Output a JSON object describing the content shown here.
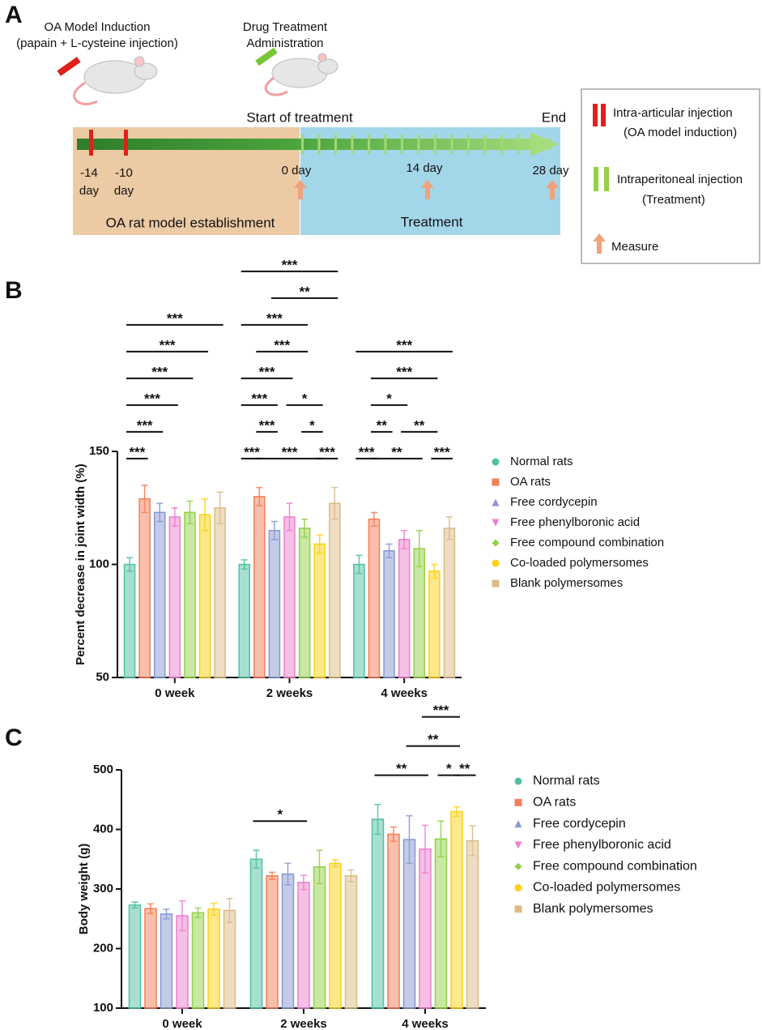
{
  "diagram": {
    "panel": "A",
    "induction": [
      "OA Model Induction",
      "(papain + L-cysteine injection)"
    ],
    "treatment_admin": [
      "Drug Treatment",
      "Administration"
    ],
    "start": "Start of treatment",
    "end": "End",
    "time_labels": [
      "-14",
      "day",
      "-10",
      "day",
      "0 day",
      "14 day",
      "28 day"
    ],
    "phases": [
      "OA rat model establishment",
      "Treatment"
    ],
    "legend": [
      "Intra-articular injection",
      "(OA model induction)",
      "Intraperitoneal injection",
      "(Treatment)",
      "Measure"
    ]
  },
  "chart_data": [
    {
      "type": "bar",
      "panel": "B",
      "y_label": "Percent decrease in joint width (%)",
      "categories": [
        "0 week",
        "2 weeks",
        "4 weeks"
      ],
      "ylim": [
        50,
        150
      ],
      "yticks": [
        50,
        100,
        150
      ],
      "grid": false,
      "series": [
        {
          "name": "Normal rats",
          "color": "#4fc1a2",
          "marker": "circle",
          "values": [
            100,
            100,
            100
          ],
          "errors": [
            3,
            2,
            4
          ]
        },
        {
          "name": "OA rats",
          "color": "#f47f58",
          "marker": "square",
          "values": [
            129,
            130,
            120
          ],
          "errors": [
            6,
            4,
            3
          ]
        },
        {
          "name": "Free cordycepin",
          "color": "#8898d0",
          "marker": "triangle-up",
          "values": [
            123,
            115,
            106
          ],
          "errors": [
            4,
            4,
            3
          ]
        },
        {
          "name": "Free phenylboronic acid",
          "color": "#ee7fcd",
          "marker": "triangle-down",
          "values": [
            121,
            121,
            111
          ],
          "errors": [
            4,
            6,
            4
          ]
        },
        {
          "name": "Free compound combination",
          "color": "#93d147",
          "marker": "diamond",
          "values": [
            123,
            116,
            107
          ],
          "errors": [
            5,
            4,
            8
          ]
        },
        {
          "name": "Co-loaded polymersomes",
          "color": "#fcd116",
          "marker": "circle",
          "values": [
            122,
            109,
            97
          ],
          "errors": [
            7,
            4,
            3
          ]
        },
        {
          "name": "Blank polymersomes",
          "color": "#dcbb86",
          "marker": "square",
          "values": [
            125,
            127,
            116
          ],
          "errors": [
            7,
            7,
            5
          ]
        }
      ],
      "comparisons": [
        {
          "category": 0,
          "from": 0,
          "to": 1,
          "label": "***"
        },
        {
          "category": 0,
          "from": 0,
          "to": 2,
          "label": "***"
        },
        {
          "category": 0,
          "from": 0,
          "to": 3,
          "label": "***"
        },
        {
          "category": 0,
          "from": 0,
          "to": 4,
          "label": "***"
        },
        {
          "category": 0,
          "from": 0,
          "to": 5,
          "label": "***"
        },
        {
          "category": 0,
          "from": 0,
          "to": 6,
          "label": "***"
        },
        {
          "category": 1,
          "from": 0,
          "to": 1,
          "label": "***"
        },
        {
          "category": 1,
          "from": 1,
          "to": 5,
          "label": "***"
        },
        {
          "category": 1,
          "from": 5,
          "to": 6,
          "label": "***"
        },
        {
          "category": 1,
          "from": 1,
          "to": 2,
          "label": "***"
        },
        {
          "category": 1,
          "from": 4,
          "to": 5,
          "label": "*"
        },
        {
          "category": 1,
          "from": 0,
          "to": 2,
          "label": "***"
        },
        {
          "category": 1,
          "from": 3,
          "to": 5,
          "label": "*"
        },
        {
          "category": 1,
          "from": 0,
          "to": 3,
          "label": "***"
        },
        {
          "category": 1,
          "from": 1,
          "to": 4,
          "label": "***"
        },
        {
          "category": 1,
          "from": 0,
          "to": 4,
          "label": "***"
        },
        {
          "category": 1,
          "from": 2,
          "to": 6,
          "label": "**"
        },
        {
          "category": 1,
          "from": 0,
          "to": 6,
          "label": "***"
        },
        {
          "category": 2,
          "from": 0,
          "to": 1,
          "label": "***"
        },
        {
          "category": 2,
          "from": 1,
          "to": 4,
          "label": "**"
        },
        {
          "category": 2,
          "from": 5,
          "to": 6,
          "label": "***"
        },
        {
          "category": 2,
          "from": 1,
          "to": 2,
          "label": "**"
        },
        {
          "category": 2,
          "from": 3,
          "to": 5,
          "label": "**"
        },
        {
          "category": 2,
          "from": 1,
          "to": 3,
          "label": "*"
        },
        {
          "category": 2,
          "from": 1,
          "to": 5,
          "label": "***"
        },
        {
          "category": 2,
          "from": 0,
          "to": 6,
          "label": "***"
        }
      ]
    },
    {
      "type": "bar",
      "panel": "C",
      "y_label": "Body weight (g)",
      "categories": [
        "0 week",
        "2 weeks",
        "4 weeks"
      ],
      "ylim": [
        100,
        500
      ],
      "yticks": [
        100,
        200,
        300,
        400,
        500
      ],
      "grid": false,
      "series": [
        {
          "name": "Normal rats",
          "color": "#4fc1a2",
          "marker": "circle",
          "values": [
            273,
            350,
            417
          ],
          "errors": [
            5,
            15,
            25
          ]
        },
        {
          "name": "OA rats",
          "color": "#f47f58",
          "marker": "square",
          "values": [
            267,
            322,
            392
          ],
          "errors": [
            8,
            6,
            12
          ]
        },
        {
          "name": "Free cordycepin",
          "color": "#8898d0",
          "marker": "triangle-up",
          "values": [
            258,
            325,
            383
          ],
          "errors": [
            8,
            18,
            40
          ]
        },
        {
          "name": "Free phenylboronic acid",
          "color": "#ee7fcd",
          "marker": "triangle-down",
          "values": [
            255,
            311,
            367
          ],
          "errors": [
            25,
            12,
            40
          ]
        },
        {
          "name": "Free compound combination",
          "color": "#93d147",
          "marker": "diamond",
          "values": [
            260,
            337,
            384
          ],
          "errors": [
            8,
            28,
            30
          ]
        },
        {
          "name": "Co-loaded polymersomes",
          "color": "#fcd116",
          "marker": "circle",
          "values": [
            266,
            343,
            430
          ],
          "errors": [
            10,
            6,
            8
          ]
        },
        {
          "name": "Blank polymersomes",
          "color": "#dcbb86",
          "marker": "square",
          "values": [
            264,
            322,
            381
          ],
          "errors": [
            20,
            10,
            25
          ]
        }
      ],
      "comparisons": [
        {
          "category": 1,
          "from": 0,
          "to": 3,
          "label": "*"
        },
        {
          "category": 2,
          "from": 0,
          "to": 3,
          "label": "**"
        },
        {
          "category": 2,
          "from": 4,
          "to": 5,
          "label": "*"
        },
        {
          "category": 2,
          "from": 5,
          "to": 6,
          "label": "**"
        },
        {
          "category": 2,
          "from": 2,
          "to": 5,
          "label": "**"
        },
        {
          "category": 2,
          "from": 3,
          "to": 5,
          "label": "***"
        }
      ]
    }
  ]
}
